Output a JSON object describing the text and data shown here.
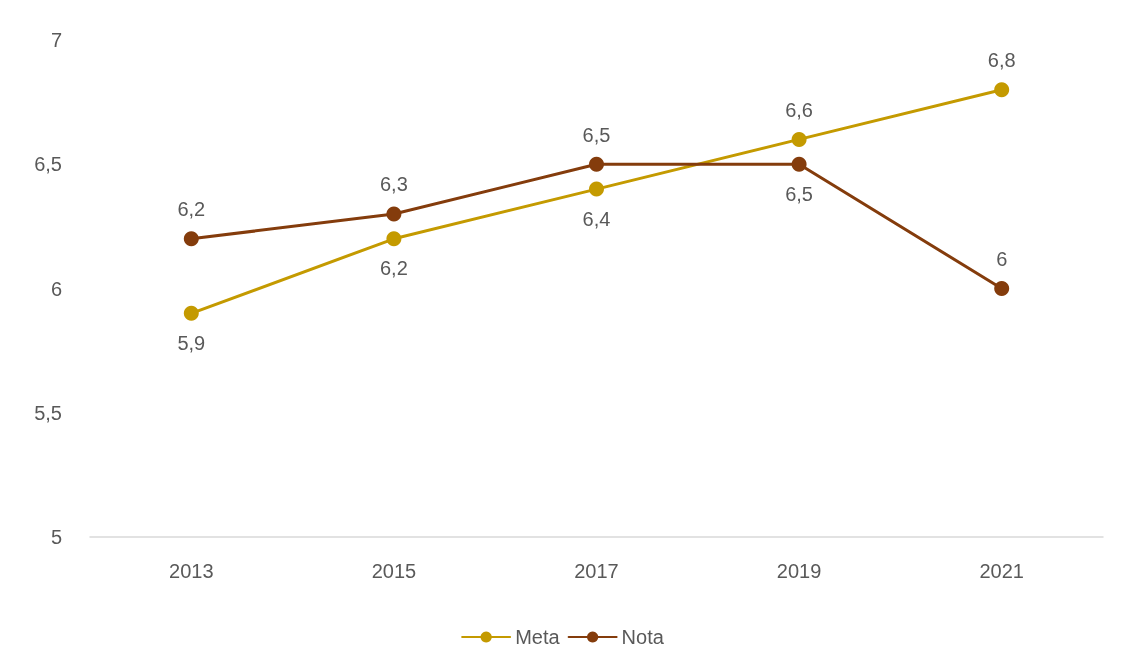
{
  "chart_data": {
    "type": "line",
    "categories": [
      "2013",
      "2015",
      "2017",
      "2019",
      "2021"
    ],
    "series": [
      {
        "name": "Meta",
        "color": "#c49a00",
        "values": [
          5.9,
          6.2,
          6.4,
          6.6,
          6.8
        ],
        "value_labels": [
          "5,9",
          "6,2",
          "6,4",
          "6,6",
          "6,8"
        ]
      },
      {
        "name": "Nota",
        "color": "#843c0c",
        "values": [
          6.2,
          6.3,
          6.5,
          6.5,
          6
        ],
        "value_labels": [
          "6,2",
          "6,3",
          "6,5",
          "6,5",
          "6"
        ]
      }
    ],
    "ylim": [
      5,
      7
    ],
    "yticks": [
      5,
      {
        "value": 5.5,
        "label": "5,5"
      },
      6,
      {
        "value": 6.5,
        "label": "6,5"
      },
      7
    ],
    "grid": false,
    "legend": "bottom",
    "marker": "circle",
    "line_style": "solid"
  }
}
